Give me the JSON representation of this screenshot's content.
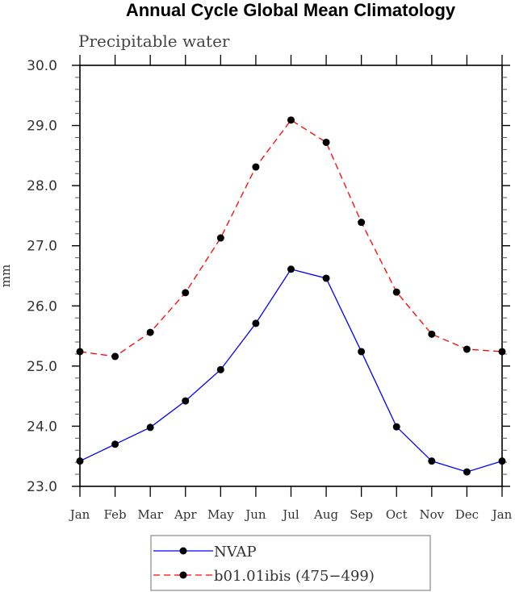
{
  "chart_data": {
    "type": "line",
    "title": "Annual Cycle Global Mean Climatology",
    "subtitle": "Precipitable water",
    "xlabel": "",
    "ylabel": "mm",
    "ylim": [
      23.0,
      30.0
    ],
    "yticks": [
      "23.0",
      "24.0",
      "25.0",
      "26.0",
      "27.0",
      "28.0",
      "29.0",
      "30.0"
    ],
    "ytick_values": [
      23,
      24,
      25,
      26,
      27,
      28,
      29,
      30
    ],
    "categories": [
      "Jan",
      "Feb",
      "Mar",
      "Apr",
      "May",
      "Jun",
      "Jul",
      "Aug",
      "Sep",
      "Oct",
      "Nov",
      "Dec",
      "Jan"
    ],
    "grid": false,
    "legend_position": "bottom-center",
    "series": [
      {
        "name": "NVAP",
        "color": "#0000ff",
        "style": "solid",
        "values": [
          23.42,
          23.7,
          23.98,
          24.42,
          24.94,
          25.71,
          26.61,
          26.46,
          25.24,
          23.99,
          23.42,
          23.24,
          23.42
        ]
      },
      {
        "name": "b01.01ibis (475−499)",
        "color": "#ff0000",
        "style": "dashed",
        "values": [
          25.24,
          25.16,
          25.56,
          26.22,
          27.13,
          28.31,
          29.09,
          28.72,
          27.39,
          26.23,
          25.53,
          25.28,
          25.24
        ]
      }
    ]
  }
}
